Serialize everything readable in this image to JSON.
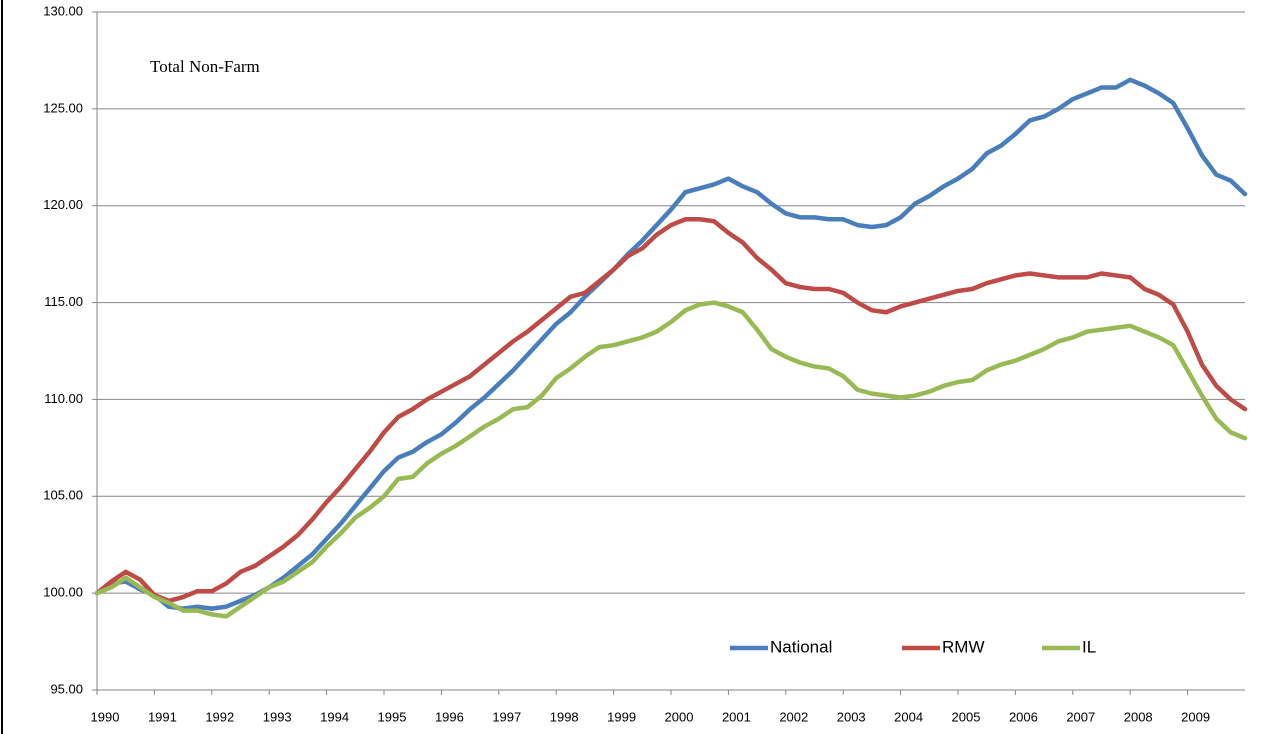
{
  "chart_data": {
    "type": "line",
    "annotation": "Total Non-Farm",
    "x": [
      1990,
      1990.25,
      1990.5,
      1990.75,
      1991,
      1991.25,
      1991.5,
      1991.75,
      1992,
      1992.25,
      1992.5,
      1992.75,
      1993,
      1993.25,
      1993.5,
      1993.75,
      1994,
      1994.25,
      1994.5,
      1994.75,
      1995,
      1995.25,
      1995.5,
      1995.75,
      1996,
      1996.25,
      1996.5,
      1996.75,
      1997,
      1997.25,
      1997.5,
      1997.75,
      1998,
      1998.25,
      1998.5,
      1998.75,
      1999,
      1999.25,
      1999.5,
      1999.75,
      2000,
      2000.25,
      2000.5,
      2000.75,
      2001,
      2001.25,
      2001.5,
      2001.75,
      2002,
      2002.25,
      2002.5,
      2002.75,
      2003,
      2003.25,
      2003.5,
      2003.75,
      2004,
      2004.25,
      2004.5,
      2004.75,
      2005,
      2005.25,
      2005.5,
      2005.75,
      2006,
      2006.25,
      2006.5,
      2006.75,
      2007,
      2007.25,
      2007.5,
      2007.75,
      2008,
      2008.25,
      2008.5,
      2008.75,
      2009,
      2009.25,
      2009.5,
      2009.75,
      2010
    ],
    "series": [
      {
        "name": "National",
        "color": "#4a7ebb",
        "values": [
          100,
          100.5,
          100.6,
          100.2,
          99.9,
          99.3,
          99.2,
          99.3,
          99.2,
          99.3,
          99.6,
          99.9,
          100.3,
          100.8,
          101.4,
          102.0,
          102.8,
          103.6,
          104.5,
          105.4,
          106.3,
          107.0,
          107.3,
          107.8,
          108.2,
          108.8,
          109.5,
          110.1,
          110.8,
          111.5,
          112.3,
          113.1,
          113.9,
          114.5,
          115.3,
          116.0,
          116.7,
          117.5,
          118.2,
          119.0,
          119.8,
          120.7,
          120.9,
          121.1,
          121.4,
          121.0,
          120.7,
          120.1,
          119.6,
          119.4,
          119.4,
          119.3,
          119.3,
          119.0,
          118.9,
          119.0,
          119.4,
          120.1,
          120.5,
          121.0,
          121.4,
          121.9,
          122.7,
          123.1,
          123.7,
          124.4,
          124.6,
          125.0,
          125.5,
          125.8,
          126.1,
          126.1,
          126.5,
          126.2,
          125.8,
          125.3,
          124.0,
          122.6,
          121.6,
          121.3,
          120.6
        ]
      },
      {
        "name": "RMW",
        "color": "#be4b48",
        "values": [
          100,
          100.6,
          101.1,
          100.7,
          99.9,
          99.6,
          99.8,
          100.1,
          100.1,
          100.5,
          101.1,
          101.4,
          101.9,
          102.4,
          103.0,
          103.8,
          104.7,
          105.5,
          106.4,
          107.3,
          108.3,
          109.1,
          109.5,
          110.0,
          110.4,
          110.8,
          111.2,
          111.8,
          112.4,
          113.0,
          113.5,
          114.1,
          114.7,
          115.3,
          115.5,
          116.1,
          116.7,
          117.4,
          117.8,
          118.5,
          119.0,
          119.3,
          119.3,
          119.2,
          118.6,
          118.1,
          117.3,
          116.7,
          116.0,
          115.8,
          115.7,
          115.7,
          115.5,
          115.0,
          114.6,
          114.5,
          114.8,
          115.0,
          115.2,
          115.4,
          115.6,
          115.7,
          116.0,
          116.2,
          116.4,
          116.5,
          116.4,
          116.3,
          116.3,
          116.3,
          116.5,
          116.4,
          116.3,
          115.7,
          115.4,
          114.9,
          113.5,
          111.8,
          110.7,
          110.0,
          109.5
        ]
      },
      {
        "name": "IL",
        "color": "#98b954",
        "values": [
          100,
          100.3,
          100.8,
          100.3,
          99.8,
          99.5,
          99.1,
          99.1,
          98.9,
          98.8,
          99.3,
          99.8,
          100.3,
          100.6,
          101.1,
          101.6,
          102.4,
          103.1,
          103.9,
          104.4,
          105.0,
          105.9,
          106.0,
          106.7,
          107.2,
          107.6,
          108.1,
          108.6,
          109.0,
          109.5,
          109.6,
          110.2,
          111.1,
          111.6,
          112.2,
          112.7,
          112.8,
          113.0,
          113.2,
          113.5,
          114.0,
          114.6,
          114.9,
          115.0,
          114.8,
          114.5,
          113.6,
          112.6,
          112.2,
          111.9,
          111.7,
          111.6,
          111.2,
          110.5,
          110.3,
          110.2,
          110.1,
          110.2,
          110.4,
          110.7,
          110.9,
          111.0,
          111.5,
          111.8,
          112.0,
          112.3,
          112.6,
          113.0,
          113.2,
          113.5,
          113.6,
          113.7,
          113.8,
          113.5,
          113.2,
          112.8,
          111.5,
          110.2,
          109.0,
          108.3,
          108.0
        ]
      }
    ],
    "xlim": [
      1990,
      2010
    ],
    "xticks": [
      1990,
      1991,
      1992,
      1993,
      1994,
      1995,
      1996,
      1997,
      1998,
      1999,
      2000,
      2001,
      2002,
      2003,
      2004,
      2005,
      2006,
      2007,
      2008,
      2009
    ],
    "ylim": [
      95,
      130
    ],
    "yticks": [
      {
        "value": 95,
        "label": "95.00"
      },
      {
        "value": 100,
        "label": "100.00"
      },
      {
        "value": 105,
        "label": "105.00"
      },
      {
        "value": 110,
        "label": "110.00"
      },
      {
        "value": 115,
        "label": "115.00"
      },
      {
        "value": 120,
        "label": "120.00"
      },
      {
        "value": 125,
        "label": "125.00"
      },
      {
        "value": 130,
        "label": "130.00"
      }
    ],
    "grid": true,
    "legend": "bottom"
  }
}
